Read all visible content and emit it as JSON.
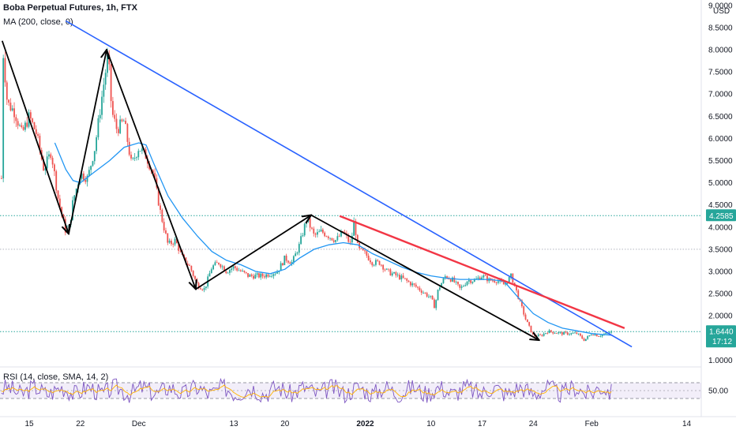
{
  "chart_data": {
    "type": "candlestick",
    "title": "Boba Perpetual Futures, 1h, FTX",
    "indicator_ma_label": "MA (200, close, 0)",
    "indicator_rsi_label": "RSI (14, close, SMA, 14, 2)",
    "currency": "USD",
    "y_ticks": [
      "9.0000",
      "8.5000",
      "8.0000",
      "7.5000",
      "7.0000",
      "6.5000",
      "6.0000",
      "5.5000",
      "5.0000",
      "4.5000",
      "4.0000",
      "3.5000",
      "3.0000",
      "2.5000",
      "2.0000",
      "1.5000",
      "1.0000"
    ],
    "y_tick_values": [
      9.0,
      8.5,
      8.0,
      7.5,
      7.0,
      6.5,
      6.0,
      5.5,
      5.0,
      4.5,
      4.0,
      3.5,
      3.0,
      2.5,
      2.0,
      1.5,
      1.0
    ],
    "ylim": [
      0.9,
      9.05
    ],
    "x_ticks": [
      {
        "label": "15",
        "day": 15,
        "bold": false
      },
      {
        "label": "22",
        "day": 22,
        "bold": false
      },
      {
        "label": "Dec",
        "day": 30,
        "bold": false
      },
      {
        "label": "13",
        "day": 43,
        "bold": false
      },
      {
        "label": "20",
        "day": 50,
        "bold": false
      },
      {
        "label": "2022",
        "day": 61,
        "bold": true
      },
      {
        "label": "10",
        "day": 70,
        "bold": false
      },
      {
        "label": "17",
        "day": 77,
        "bold": false
      },
      {
        "label": "24",
        "day": 84,
        "bold": false
      },
      {
        "label": "Feb",
        "day": 92,
        "bold": false
      },
      {
        "label": "14",
        "day": 105,
        "bold": false
      }
    ],
    "x_range_days": [
      11,
      107
    ],
    "price_path": [
      [
        11.2,
        5.1
      ],
      [
        11.3,
        8.2
      ],
      [
        12,
        6.8
      ],
      [
        13,
        6.6
      ],
      [
        14,
        6.1
      ],
      [
        15,
        6.5
      ],
      [
        16,
        6.1
      ],
      [
        17,
        5.3
      ],
      [
        18,
        5.7
      ],
      [
        19,
        4.6
      ],
      [
        20,
        3.9
      ],
      [
        20.5,
        4.0
      ],
      [
        21,
        4.6
      ],
      [
        22,
        5.2
      ],
      [
        23,
        5.1
      ],
      [
        24,
        5.8
      ],
      [
        25,
        7.0
      ],
      [
        25.8,
        7.9
      ],
      [
        26.3,
        6.6
      ],
      [
        27,
        6.2
      ],
      [
        28,
        6.4
      ],
      [
        29,
        5.4
      ],
      [
        30,
        5.8
      ],
      [
        31,
        5.6
      ],
      [
        32,
        5.2
      ],
      [
        33,
        4.3
      ],
      [
        34,
        3.6
      ],
      [
        35,
        3.7
      ],
      [
        36,
        3.3
      ],
      [
        37,
        3.1
      ],
      [
        38,
        2.7
      ],
      [
        39,
        2.6
      ],
      [
        40,
        3.1
      ],
      [
        41,
        3.2
      ],
      [
        42,
        3.0
      ],
      [
        43,
        3.1
      ],
      [
        45,
        2.9
      ],
      [
        47,
        2.9
      ],
      [
        49,
        3.0
      ],
      [
        50,
        3.3
      ],
      [
        51,
        3.2
      ],
      [
        52,
        3.6
      ],
      [
        53,
        4.2
      ],
      [
        54,
        3.8
      ],
      [
        55,
        3.9
      ],
      [
        56,
        3.8
      ],
      [
        57,
        3.7
      ],
      [
        58,
        3.9
      ],
      [
        59,
        3.6
      ],
      [
        59.5,
        4.15
      ],
      [
        60,
        3.5
      ],
      [
        61,
        3.4
      ],
      [
        62,
        3.2
      ],
      [
        63,
        3.2
      ],
      [
        64,
        3.0
      ],
      [
        66,
        2.85
      ],
      [
        68,
        2.65
      ],
      [
        70,
        2.4
      ],
      [
        70.5,
        2.2
      ],
      [
        71,
        2.6
      ],
      [
        72,
        2.9
      ],
      [
        73,
        2.8
      ],
      [
        74,
        2.6
      ],
      [
        75,
        2.8
      ],
      [
        76,
        2.8
      ],
      [
        77,
        2.9
      ],
      [
        78,
        2.8
      ],
      [
        79,
        2.8
      ],
      [
        80,
        2.7
      ],
      [
        81,
        2.9
      ],
      [
        82,
        2.4
      ],
      [
        83,
        1.9
      ],
      [
        84,
        1.55
      ],
      [
        85,
        1.55
      ],
      [
        86,
        1.65
      ],
      [
        88,
        1.6
      ],
      [
        90,
        1.6
      ],
      [
        91,
        1.45
      ],
      [
        92,
        1.6
      ],
      [
        93,
        1.55
      ],
      [
        94,
        1.6
      ],
      [
        94.8,
        1.644
      ]
    ],
    "ma200_path": [
      [
        18.5,
        5.9
      ],
      [
        20,
        5.3
      ],
      [
        21,
        5.05
      ],
      [
        22,
        5.0
      ],
      [
        24,
        5.25
      ],
      [
        26,
        5.5
      ],
      [
        28,
        5.8
      ],
      [
        30,
        5.9
      ],
      [
        31,
        5.85
      ],
      [
        32,
        5.45
      ],
      [
        34,
        4.7
      ],
      [
        36,
        4.2
      ],
      [
        38,
        3.8
      ],
      [
        40,
        3.45
      ],
      [
        42,
        3.25
      ],
      [
        44,
        3.15
      ],
      [
        46,
        3.0
      ],
      [
        48,
        2.95
      ],
      [
        50,
        3.05
      ],
      [
        52,
        3.3
      ],
      [
        54,
        3.5
      ],
      [
        56,
        3.6
      ],
      [
        58,
        3.65
      ],
      [
        60,
        3.6
      ],
      [
        62,
        3.4
      ],
      [
        64,
        3.25
      ],
      [
        66,
        3.1
      ],
      [
        68,
        2.98
      ],
      [
        70,
        2.9
      ],
      [
        72,
        2.85
      ],
      [
        74,
        2.82
      ],
      [
        76,
        2.82
      ],
      [
        78,
        2.82
      ],
      [
        80,
        2.78
      ],
      [
        82,
        2.4
      ],
      [
        84,
        2.05
      ],
      [
        86,
        1.85
      ],
      [
        88,
        1.72
      ],
      [
        90,
        1.66
      ],
      [
        92,
        1.6
      ],
      [
        94.8,
        1.56
      ]
    ],
    "trendlines": [
      {
        "name": "blue",
        "color": "#2962ff",
        "points": [
          [
            20,
            8.65
          ],
          [
            97.5,
            1.3
          ]
        ]
      },
      {
        "name": "red",
        "color": "#f23645",
        "points": [
          [
            57.5,
            4.25
          ],
          [
            96.5,
            1.72
          ]
        ]
      }
    ],
    "zigzag": [
      [
        11.3,
        8.2
      ],
      [
        20.4,
        3.85
      ],
      [
        25.6,
        8.0
      ],
      [
        37.8,
        2.6
      ],
      [
        53.6,
        4.27
      ],
      [
        84.8,
        1.45
      ]
    ],
    "horizontal_levels": [
      {
        "value": 4.2585,
        "label": "4.2585",
        "color": "#26a69a",
        "style": "dotted"
      },
      {
        "value": 3.5,
        "label": "",
        "color": "#b2b5be",
        "style": "dotted"
      },
      {
        "value": 1.644,
        "label": "1.6440",
        "sub_label": "17:12",
        "color": "#26a69a",
        "style": "dotted"
      }
    ],
    "rsi": {
      "y_tick": "50.00",
      "upper": 70,
      "lower": 30,
      "range": [
        0,
        100
      ],
      "band_color": "#7e57c2"
    },
    "colors": {
      "up": "#26a69a",
      "down": "#ef5350",
      "ma": "#2196f3",
      "rsi_line": "#7e57c2",
      "rsi_sma": "#ffb300"
    }
  }
}
